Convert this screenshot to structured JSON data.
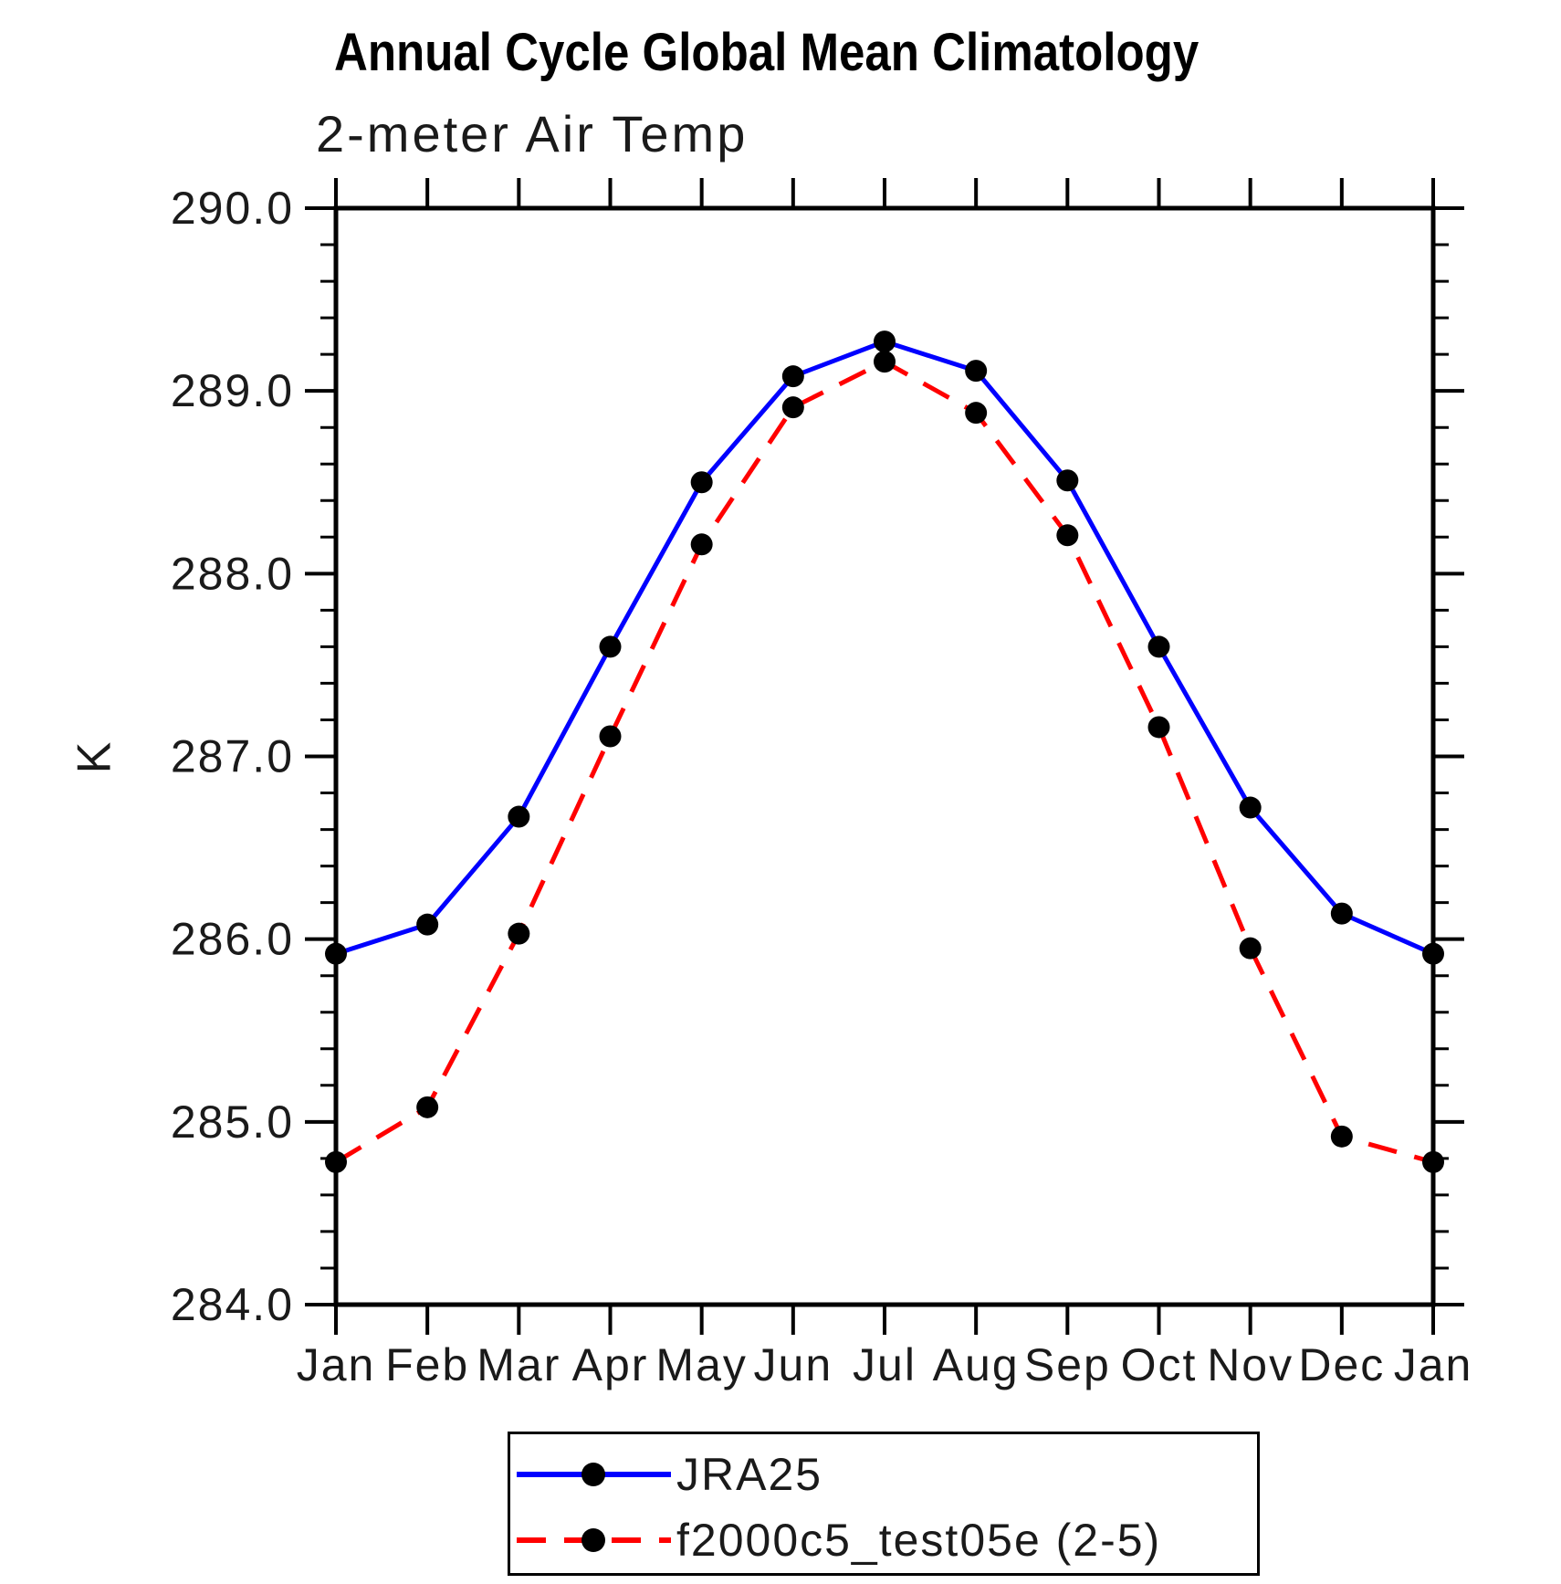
{
  "chart_data": {
    "type": "line",
    "title": "Annual Cycle Global Mean Climatology",
    "subtitle": "2-meter Air Temp",
    "ylabel": "K",
    "xlabel": "",
    "categories": [
      "Jan",
      "Feb",
      "Mar",
      "Apr",
      "May",
      "Jun",
      "Jul",
      "Aug",
      "Sep",
      "Oct",
      "Nov",
      "Dec",
      "Jan"
    ],
    "ylim": [
      284.0,
      290.0
    ],
    "yticks": [
      "290.0",
      "289.0",
      "288.0",
      "287.0",
      "286.0",
      "285.0",
      "284.0"
    ],
    "ytick_minor_step": 0.2,
    "grid": false,
    "legend_position": "bottom-center",
    "axis_color": "#000000",
    "series": [
      {
        "name": "JRA25",
        "color": "#0000ff",
        "style": "solid",
        "marker": "filled-circle",
        "marker_color": "#000000",
        "values": [
          285.92,
          286.08,
          286.67,
          287.6,
          288.5,
          289.08,
          289.27,
          289.11,
          288.51,
          287.6,
          286.72,
          286.14,
          285.92
        ]
      },
      {
        "name": "f2000c5_test05e (2-5)",
        "color": "#ff0000",
        "style": "dashed",
        "marker": "filled-circle",
        "marker_color": "#000000",
        "values": [
          284.78,
          285.08,
          286.03,
          287.11,
          288.16,
          288.91,
          289.16,
          288.88,
          288.21,
          287.16,
          285.95,
          284.92,
          284.78
        ]
      }
    ]
  }
}
